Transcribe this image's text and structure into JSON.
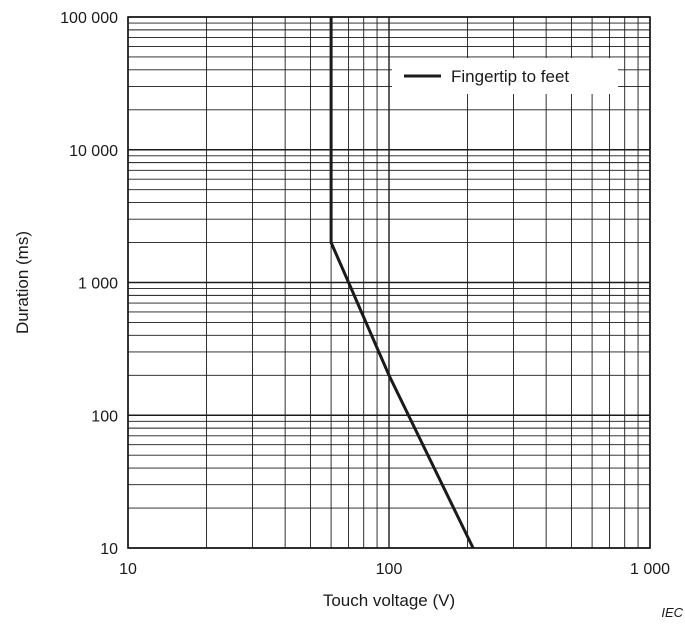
{
  "chart_data": {
    "type": "line",
    "title": "",
    "xlabel": "Touch voltage  (V)",
    "ylabel": "Duration  (ms)",
    "x_scale": "log",
    "y_scale": "log",
    "xlim": [
      10,
      1000
    ],
    "ylim": [
      10,
      100000
    ],
    "grid": true,
    "x_ticks": [
      {
        "value": 10,
        "label": "10"
      },
      {
        "value": 100,
        "label": "100"
      },
      {
        "value": 1000,
        "label": "1 000"
      }
    ],
    "y_ticks": [
      {
        "value": 10,
        "label": "10"
      },
      {
        "value": 100,
        "label": "100"
      },
      {
        "value": 1000,
        "label": "1 000"
      },
      {
        "value": 10000,
        "label": "10 000"
      },
      {
        "value": 100000,
        "label": "100 000"
      }
    ],
    "legend_position": "top-right",
    "series": [
      {
        "name": "Fingertip to feet",
        "color": "#1a1a1a",
        "x": [
          60,
          60,
          70,
          100,
          210
        ],
        "y": [
          100000,
          2000,
          1000,
          200,
          10
        ]
      }
    ],
    "credit": "IEC"
  }
}
